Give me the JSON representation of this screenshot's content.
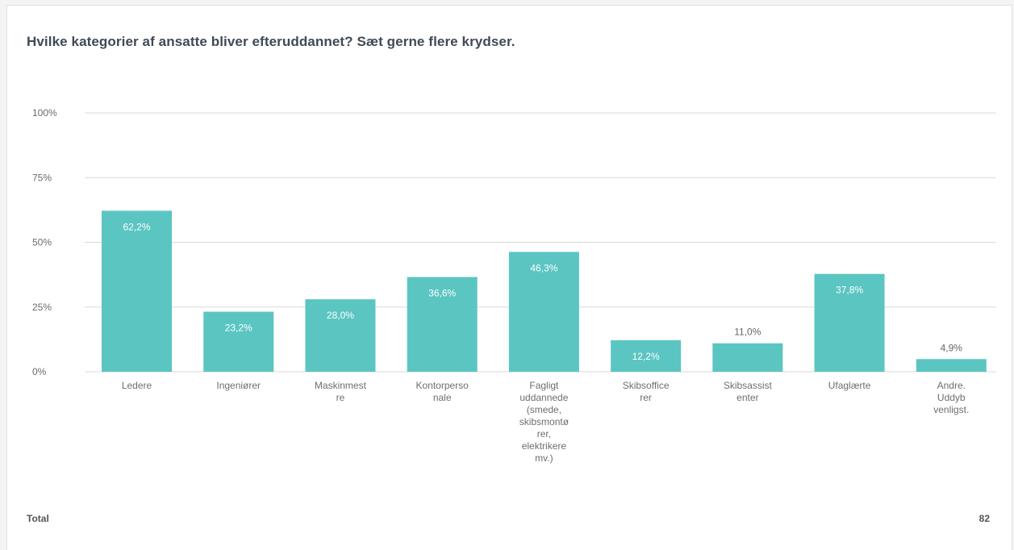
{
  "question": "Hvilke kategorier af ansatte bliver efteruddannet? Sæt gerne flere krydser.",
  "footer": {
    "total_label": "Total",
    "total_value": "82"
  },
  "colors": {
    "bar": "#5bc5c1",
    "grid": "#d9d9d9",
    "label_inside": "#ffffff",
    "label_outside": "#666666"
  },
  "chart_data": {
    "type": "bar",
    "title": "Hvilke kategorier af ansatte bliver efteruddannet? Sæt gerne flere krydser.",
    "categories": [
      "Ledere",
      "Ingeniører",
      "Maskinmestre",
      "Kontorpersonale",
      "Fagligt uddannede (smede, skibsmontører, elektrikere mv.)",
      "Skibsofficerer",
      "Skibsassistenter",
      "Ufaglærte",
      "Andre. Uddyb venligst."
    ],
    "category_label_lines": [
      [
        "Ledere"
      ],
      [
        "Ingeniører"
      ],
      [
        "Maskinmest",
        "re"
      ],
      [
        "Kontorperso",
        "nale"
      ],
      [
        "Fagligt",
        "uddannede",
        "(smede,",
        "skibsmontø",
        "rer,",
        "elektrikere",
        "mv.)"
      ],
      [
        "Skibsoffice",
        "rer"
      ],
      [
        "Skibsassist",
        "enter"
      ],
      [
        "Ufaglærte"
      ],
      [
        "Andre.",
        "Uddyb",
        "venligst."
      ]
    ],
    "values": [
      62.2,
      23.2,
      28.0,
      36.6,
      46.3,
      12.2,
      11.0,
      37.8,
      4.9
    ],
    "value_labels": [
      "62,2%",
      "23,2%",
      "28,0%",
      "36,6%",
      "46,3%",
      "12,2%",
      "11,0%",
      "37,8%",
      "4,9%"
    ],
    "yticks": [
      0,
      25,
      50,
      75,
      100
    ],
    "ytick_labels": [
      "0%",
      "25%",
      "50%",
      "75%",
      "100%"
    ],
    "ylim": [
      0,
      100
    ],
    "grid": true,
    "legend": "none"
  }
}
